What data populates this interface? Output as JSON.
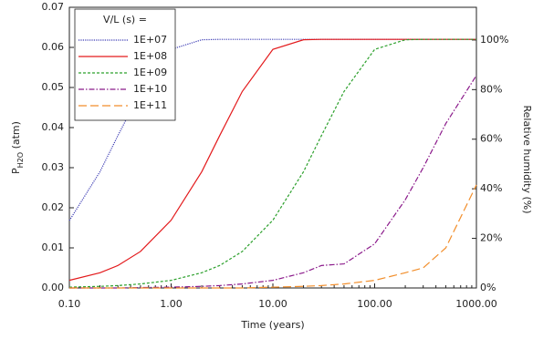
{
  "chart_data": {
    "type": "line",
    "x_label": "Time (years)",
    "y_label": [
      "P",
      "H2O",
      " (atm)"
    ],
    "y2_label": "Relative humidity (%)",
    "legend_title": "V/L (s) =",
    "legend": "upper left",
    "xscale": "log",
    "xlim": [
      0.1,
      1000
    ],
    "xticks": [
      {
        "value": 0.1,
        "label": "0.10"
      },
      {
        "value": 1,
        "label": "1.00"
      },
      {
        "value": 10,
        "label": "10.00"
      },
      {
        "value": 100,
        "label": "100.00"
      },
      {
        "value": 1000,
        "label": "1000.00"
      }
    ],
    "ylim": [
      0,
      0.07
    ],
    "yticks": [
      {
        "value": 0,
        "label": "0.00"
      },
      {
        "value": 0.01,
        "label": "0.01"
      },
      {
        "value": 0.02,
        "label": "0.02"
      },
      {
        "value": 0.03,
        "label": "0.03"
      },
      {
        "value": 0.04,
        "label": "0.04"
      },
      {
        "value": 0.05,
        "label": "0.05"
      },
      {
        "value": 0.06,
        "label": "0.06"
      },
      {
        "value": 0.07,
        "label": "0.07"
      }
    ],
    "y2lim": [
      0,
      113.2
    ],
    "y2ticks": [
      {
        "value": 0,
        "label": "0%"
      },
      {
        "value": 20,
        "label": "20%"
      },
      {
        "value": 40,
        "label": "40%"
      },
      {
        "value": 60,
        "label": "60%"
      },
      {
        "value": 80,
        "label": "80%"
      },
      {
        "value": 100,
        "label": "100%"
      }
    ],
    "x": [
      0.1,
      0.2,
      0.3,
      0.5,
      1,
      2,
      3,
      5,
      10,
      20,
      30,
      50,
      100,
      200,
      300,
      500,
      1000
    ],
    "series": [
      {
        "name": "1E+07",
        "color": "#3b3bb3",
        "style": "dotted",
        "values": [
          0.0168,
          0.029,
          0.038,
          0.049,
          0.0595,
          0.0619,
          0.062,
          0.062,
          0.062,
          0.062,
          0.062,
          0.062,
          0.062,
          0.062,
          0.062,
          0.062,
          0.062
        ]
      },
      {
        "name": "1E+08",
        "color": "#e31a1c",
        "style": "solid",
        "values": [
          0.0019,
          0.0038,
          0.0056,
          0.0091,
          0.0169,
          0.029,
          0.038,
          0.049,
          0.0595,
          0.0619,
          0.062,
          0.062,
          0.062,
          0.062,
          0.062,
          0.062,
          0.062
        ]
      },
      {
        "name": "1E+09",
        "color": "#2ca02c",
        "style": "dashed",
        "values": [
          0.0002,
          0.0004,
          0.0006,
          0.001,
          0.0019,
          0.0038,
          0.0056,
          0.0091,
          0.0169,
          0.029,
          0.038,
          0.049,
          0.0595,
          0.0619,
          0.062,
          0.062,
          0.062
        ]
      },
      {
        "name": "1E+10",
        "color": "#8b1a8b",
        "style": "dashdot",
        "values": [
          0,
          0,
          0,
          0.0001,
          0.0002,
          0.0004,
          0.0006,
          0.001,
          0.0019,
          0.0038,
          0.0056,
          0.006,
          0.011,
          0.022,
          0.03,
          0.041,
          0.053
        ]
      },
      {
        "name": "1E+11",
        "color": "#f28e2b",
        "style": "longdash",
        "values": [
          0,
          0,
          0,
          0,
          0,
          0,
          0,
          0,
          0.0002,
          0.0004,
          0.0006,
          0.001,
          0.0019,
          0.0038,
          0.005,
          0.01,
          0.0257
        ]
      }
    ]
  }
}
